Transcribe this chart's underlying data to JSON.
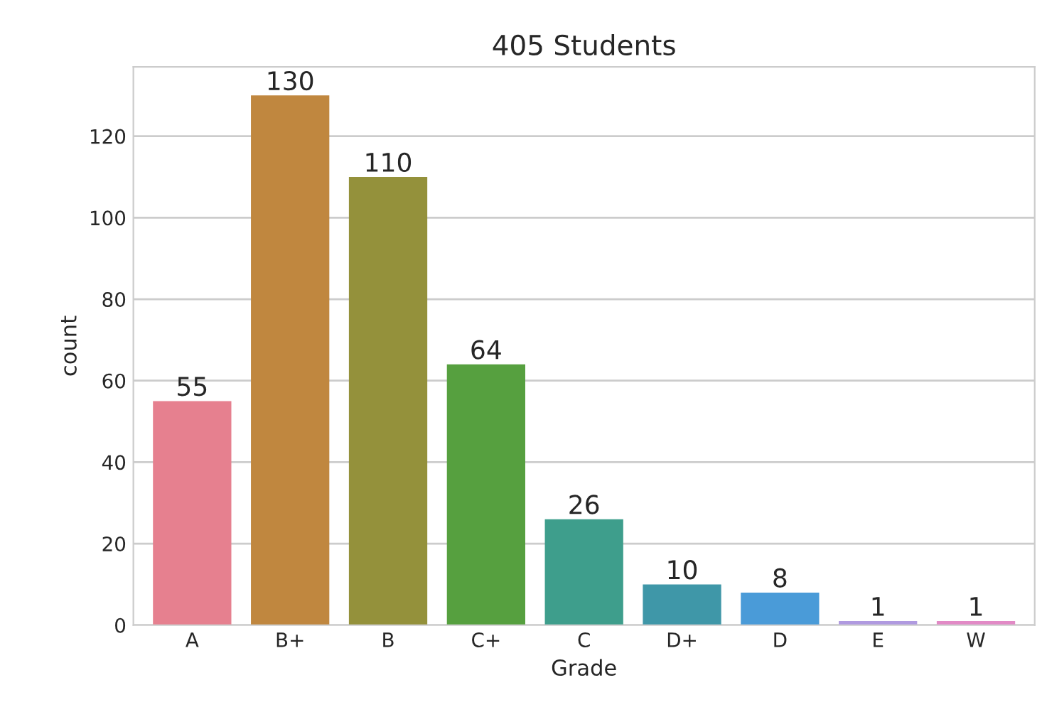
{
  "chart_data": {
    "type": "bar",
    "title": "405 Students",
    "xlabel": "Grade",
    "ylabel": "count",
    "categories": [
      "A",
      "B+",
      "B",
      "C+",
      "C",
      "D+",
      "D",
      "E",
      "W"
    ],
    "values": [
      55,
      130,
      110,
      64,
      26,
      10,
      8,
      1,
      1
    ],
    "colors": [
      "#e6808f",
      "#c0873f",
      "#94913b",
      "#56a03f",
      "#3e9e8c",
      "#3f97a8",
      "#4a9bd8",
      "#b09ae0",
      "#e28ac6"
    ],
    "ylim": [
      0,
      137
    ],
    "yticks": [
      0,
      20,
      40,
      60,
      80,
      100,
      120
    ],
    "grid": "y",
    "data_labels": true
  }
}
